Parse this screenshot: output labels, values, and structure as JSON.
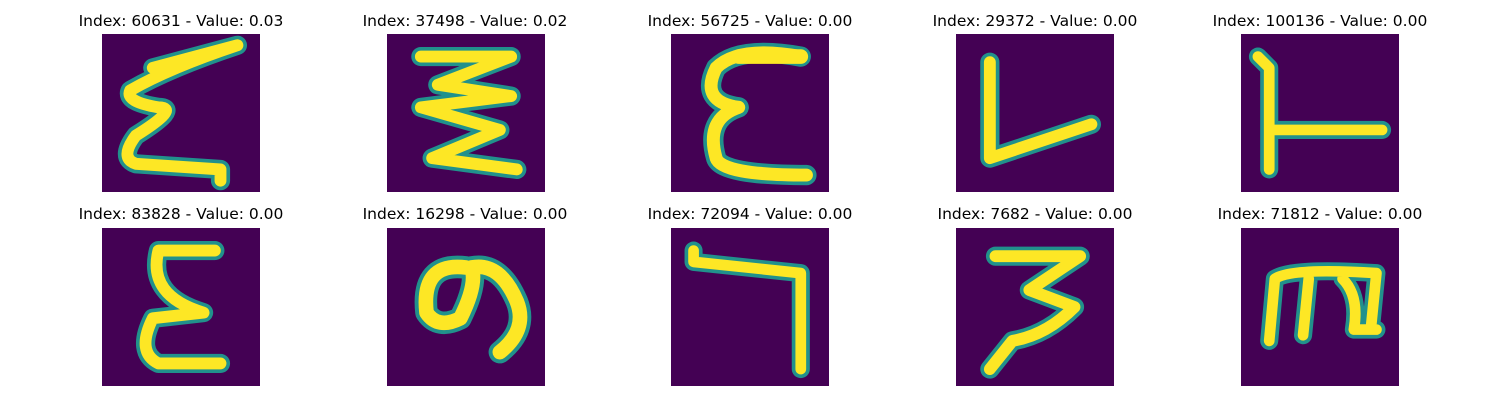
{
  "figure": {
    "background": "#ffffff",
    "colormap": {
      "low": "#440154",
      "mid": "#21918c",
      "high": "#fde725"
    },
    "panels": [
      {
        "title": "Index: 60631 - Value: 0.03",
        "glyph": "epsilon-narrow"
      },
      {
        "title": "Index: 37498 - Value: 0.02",
        "glyph": "zigzag-z"
      },
      {
        "title": "Index: 56725 - Value: 0.00",
        "glyph": "epsilon-round"
      },
      {
        "title": "Index: 29372 - Value: 0.00",
        "glyph": "letter-l"
      },
      {
        "title": "Index: 100136 - Value: 0.00",
        "glyph": "rotated-t"
      },
      {
        "title": "Index: 83828 - Value: 0.00",
        "glyph": "epsilon-tall"
      },
      {
        "title": "Index: 16298 - Value: 0.00",
        "glyph": "digit-9"
      },
      {
        "title": "Index: 72094 - Value: 0.00",
        "glyph": "hook-7"
      },
      {
        "title": "Index: 7682 - Value: 0.00",
        "glyph": "digit-3-z"
      },
      {
        "title": "Index: 71812 - Value: 0.00",
        "glyph": "letter-m"
      }
    ]
  }
}
